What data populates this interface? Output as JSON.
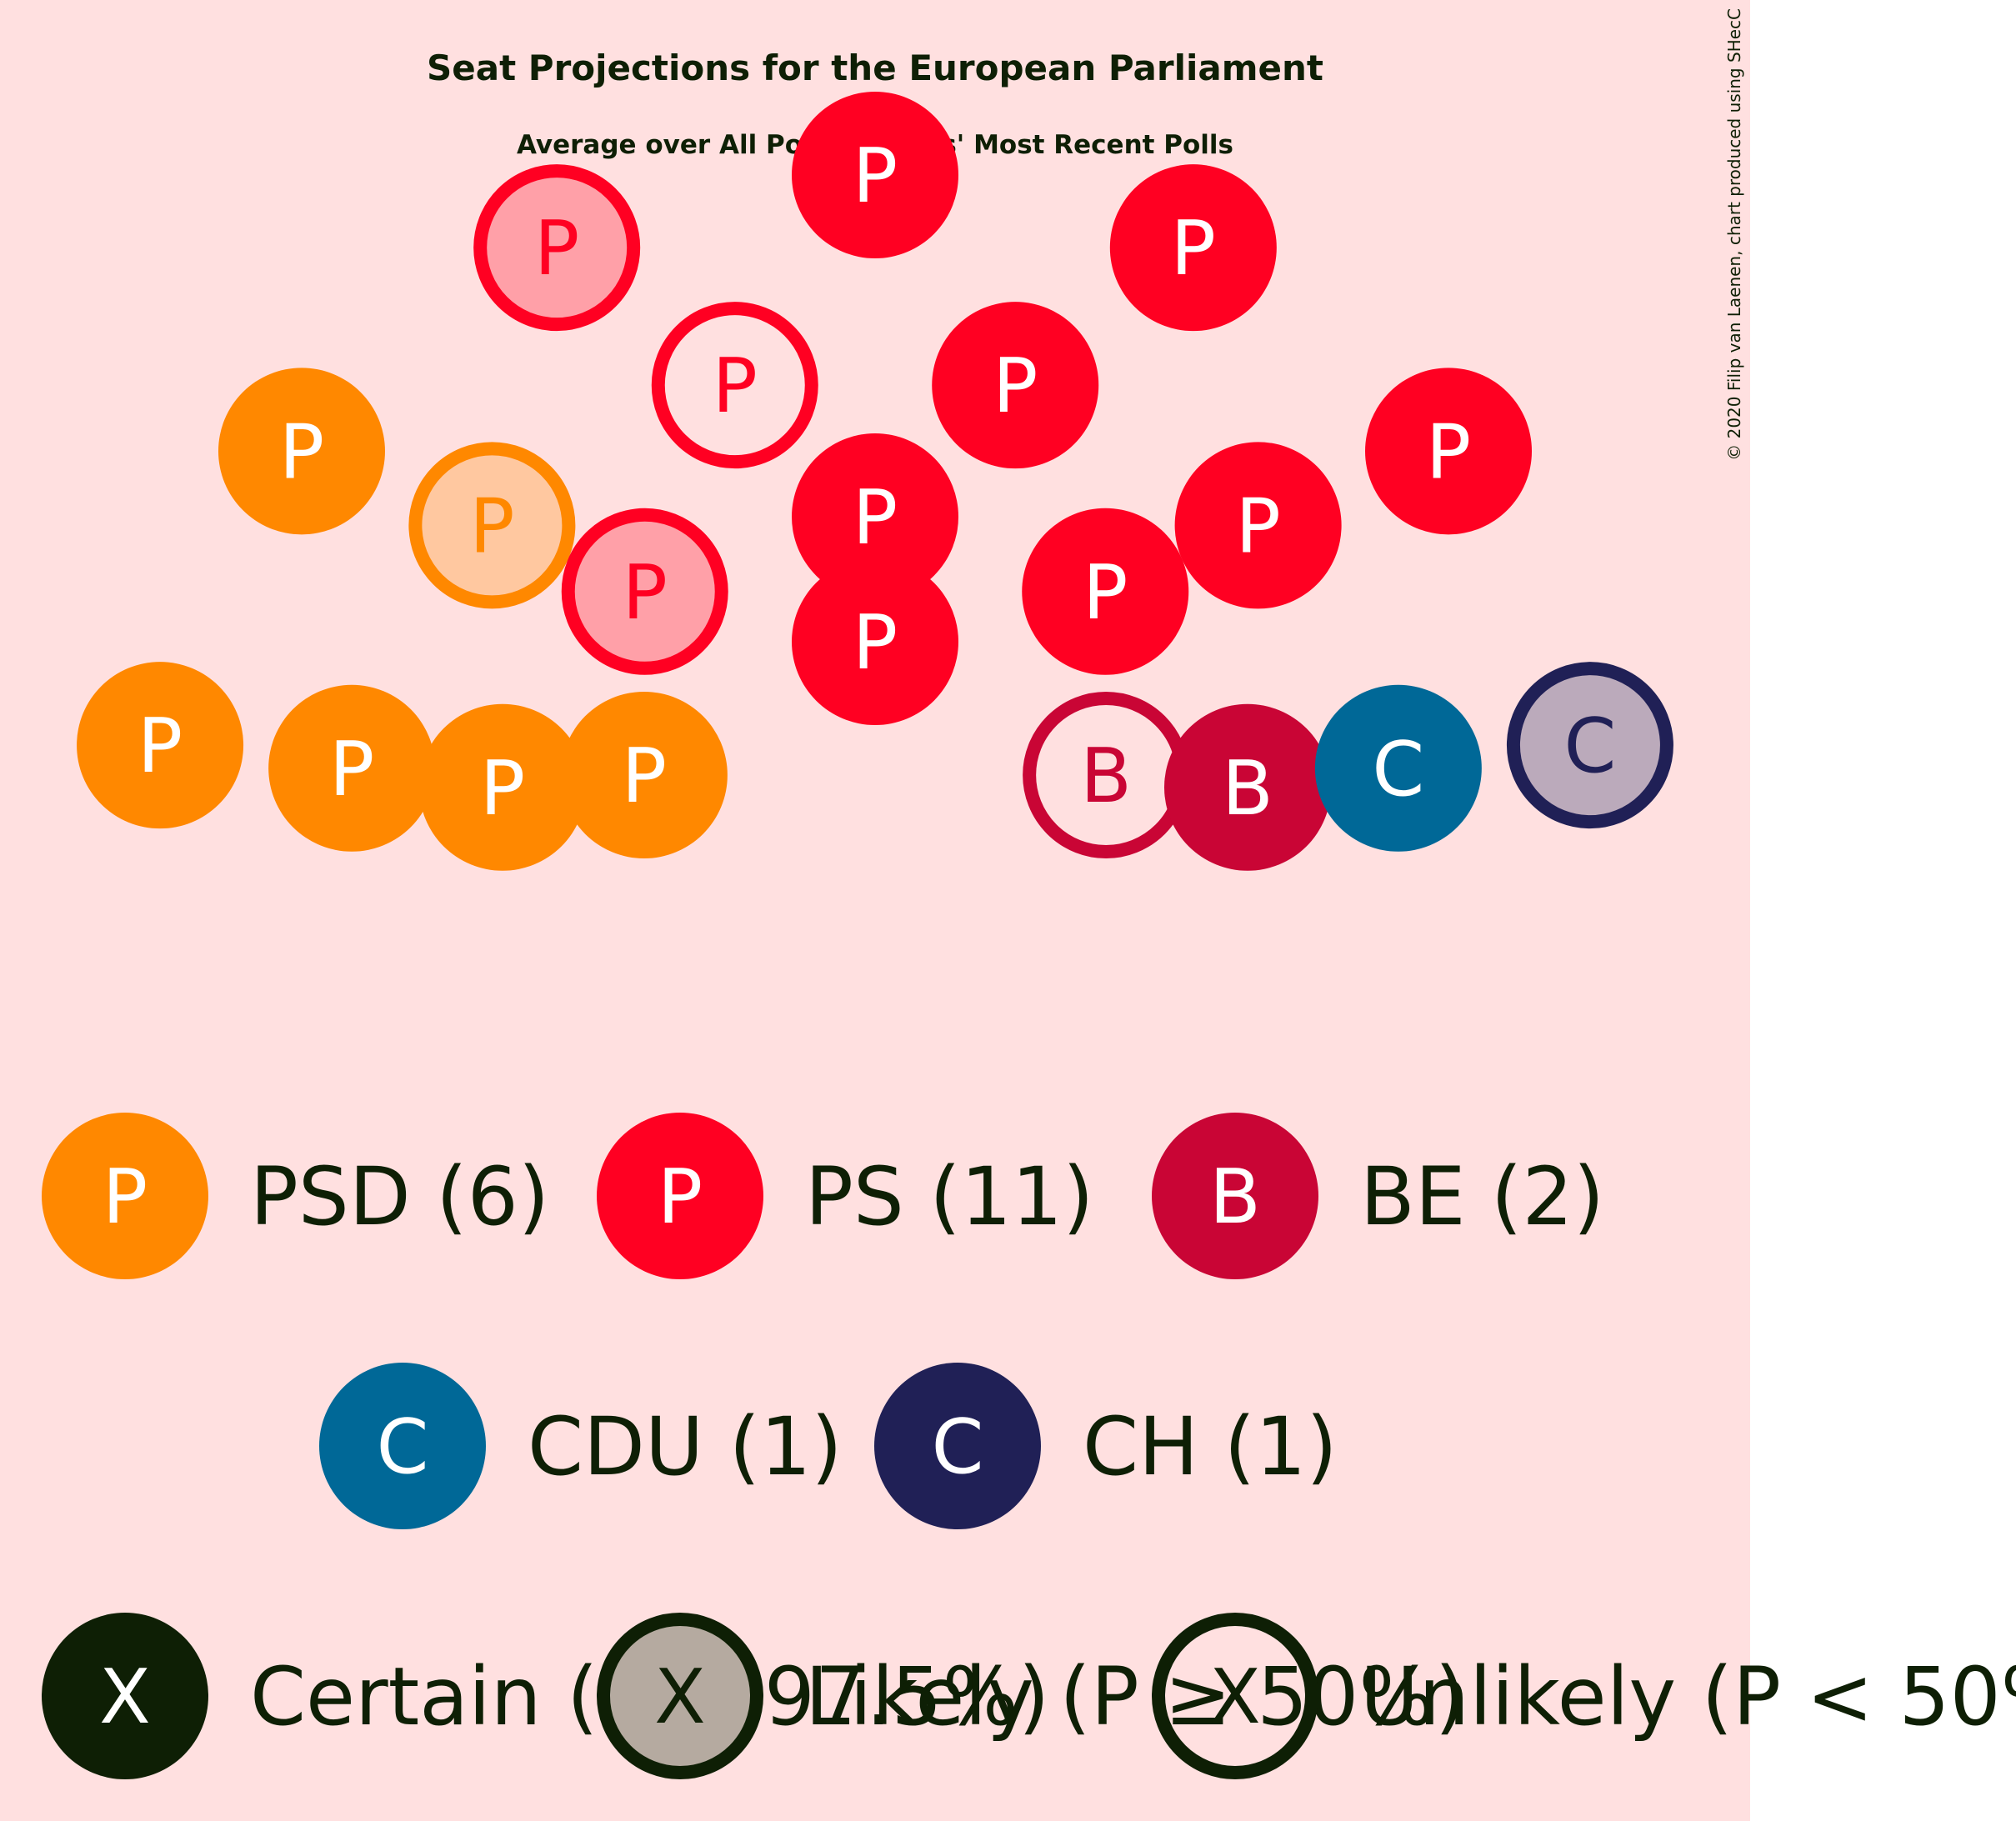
{
  "colors": {
    "background": "#ffe0e0",
    "text": "#0e1f05",
    "legend_likely_fill": "#b5aaa0",
    "legend_likely_stroke": "#0e1f05"
  },
  "chart_data": {
    "type": "parliament-seats",
    "title": "Seat Projections for the European Parliament",
    "subtitle": "Average over All Polling Firms' Most Recent Polls",
    "credit": "© 2020 Filip van Laenen, chart produced using SHecC",
    "total_seats": 21,
    "parties": [
      {
        "id": "PSD",
        "letter": "P",
        "color": "#ff8800",
        "light": "#ffc8a0",
        "legend": "PSD (6)",
        "seats": 6,
        "certain": 5,
        "likely": 1,
        "unlikely": 0
      },
      {
        "id": "PS",
        "letter": "P",
        "color": "#ff0022",
        "light": "#ffa0a8",
        "legend": "PS (11)",
        "seats": 11,
        "certain": 8,
        "likely": 2,
        "unlikely": 1
      },
      {
        "id": "BE",
        "letter": "B",
        "color": "#c90535",
        "light": "#f0a0b0",
        "legend": "BE (2)",
        "seats": 2,
        "certain": 1,
        "likely": 0,
        "unlikely": 1
      },
      {
        "id": "CDU",
        "letter": "C",
        "color": "#006897",
        "light": "#9ac4d8",
        "legend": "CDU (1)",
        "seats": 1,
        "certain": 1,
        "likely": 0,
        "unlikely": 0
      },
      {
        "id": "CH",
        "letter": "C",
        "color": "#202056",
        "light": "#bbaabb",
        "legend": "CH (1)",
        "seats": 1,
        "certain": 0,
        "likely": 1,
        "unlikely": 0
      }
    ],
    "seats": [
      {
        "party": "PSD",
        "status": "certain"
      },
      {
        "party": "PSD",
        "status": "certain"
      },
      {
        "party": "PSD",
        "status": "certain"
      },
      {
        "party": "PSD",
        "status": "certain"
      },
      {
        "party": "PSD",
        "status": "certain"
      },
      {
        "party": "PSD",
        "status": "likely"
      },
      {
        "party": "PS",
        "status": "likely"
      },
      {
        "party": "PS",
        "status": "likely"
      },
      {
        "party": "PS",
        "status": "unlikely"
      },
      {
        "party": "PS",
        "status": "certain"
      },
      {
        "party": "PS",
        "status": "certain"
      },
      {
        "party": "PS",
        "status": "certain"
      },
      {
        "party": "PS",
        "status": "certain"
      },
      {
        "party": "PS",
        "status": "certain"
      },
      {
        "party": "PS",
        "status": "certain"
      },
      {
        "party": "PS",
        "status": "certain"
      },
      {
        "party": "PS",
        "status": "certain"
      },
      {
        "party": "BE",
        "status": "unlikely"
      },
      {
        "party": "BE",
        "status": "certain"
      },
      {
        "party": "CDU",
        "status": "certain"
      },
      {
        "party": "CH",
        "status": "likely"
      }
    ],
    "status_legend": [
      {
        "status": "certain",
        "letter": "X",
        "label": "Certain (P ≥ 97.5%)"
      },
      {
        "status": "likely",
        "letter": "X",
        "label": "Likely (P ≥ 50%)"
      },
      {
        "status": "unlikely",
        "letter": "X",
        "label": "Unlikely (P < 50%)"
      }
    ]
  }
}
